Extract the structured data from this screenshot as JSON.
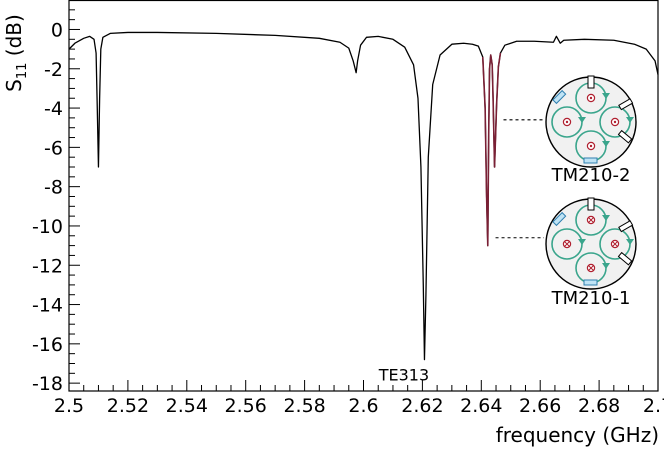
{
  "chart_data": {
    "type": "line",
    "xlabel": "frequency (GHz)",
    "ylabel": "S11 (dB)",
    "ylabel_main": "S",
    "ylabel_sub": "11",
    "ylabel_unit": " (dB)",
    "xlim": [
      2.5,
      2.7
    ],
    "ylim": [
      -18.4,
      1.5
    ],
    "grid": false,
    "xticks": [
      2.5,
      2.52,
      2.54,
      2.56,
      2.58,
      2.6,
      2.62,
      2.64,
      2.66,
      2.68,
      2.7
    ],
    "xtick_labels": [
      "2.5",
      "2.52",
      "2.54",
      "2.56",
      "2.58",
      "2.6",
      "2.62",
      "2.64",
      "2.66",
      "2.68",
      "2.7"
    ],
    "yticks": [
      0,
      -2,
      -4,
      -6,
      -8,
      -10,
      -12,
      -14,
      -16,
      -18
    ],
    "ytick_labels": [
      "0",
      "-2",
      "-4",
      "-6",
      "-8",
      "-10",
      "-12",
      "-14",
      "-16",
      "-18"
    ],
    "series": [
      {
        "color": "#000000",
        "x": [
          2.5,
          2.502,
          2.505,
          2.507,
          2.5085,
          2.5092,
          2.5096,
          2.51,
          2.5104,
          2.5108,
          2.5115,
          2.514,
          2.52,
          2.53,
          2.55,
          2.57,
          2.585,
          2.592,
          2.595,
          2.5965,
          2.5975,
          2.598,
          2.599,
          2.601,
          2.605,
          2.61,
          2.614,
          2.617,
          2.6185,
          2.6195,
          2.6203,
          2.6207,
          2.6212,
          2.622,
          2.6235,
          2.626,
          2.63,
          2.634,
          2.637,
          2.639,
          2.6405,
          2.6413,
          2.6418,
          2.6422,
          2.6425,
          2.6428,
          2.6432,
          2.6437,
          2.644,
          2.6445,
          2.6452,
          2.6458,
          2.6465,
          2.648,
          2.652,
          2.658,
          2.6645,
          2.6655,
          2.6668,
          2.668,
          2.675,
          2.685,
          2.692,
          2.696,
          2.699,
          2.7
        ],
        "y": [
          -1.0,
          -0.7,
          -0.45,
          -0.35,
          -0.5,
          -1.2,
          -4.0,
          -7.0,
          -3.5,
          -1.0,
          -0.4,
          -0.2,
          -0.15,
          -0.15,
          -0.2,
          -0.3,
          -0.45,
          -0.65,
          -0.95,
          -1.6,
          -2.2,
          -1.6,
          -0.8,
          -0.4,
          -0.35,
          -0.5,
          -0.9,
          -1.8,
          -3.5,
          -7.0,
          -13.0,
          -16.8,
          -13.5,
          -6.5,
          -2.8,
          -1.3,
          -0.75,
          -0.7,
          -0.75,
          -0.85,
          -1.4,
          -4.0,
          -8.5,
          -11.0,
          -5.5,
          -2.0,
          -1.3,
          -1.8,
          -3.5,
          -7.0,
          -3.8,
          -1.9,
          -1.2,
          -0.8,
          -0.6,
          -0.6,
          -0.65,
          -0.35,
          -0.7,
          -0.55,
          -0.5,
          -0.55,
          -0.75,
          -1.0,
          -1.6,
          -2.3
        ]
      }
    ],
    "highlight_range": [
      2.6405,
      2.6465
    ],
    "highlight_color": "#7a2035",
    "annotations": [
      {
        "text": "TE313",
        "x": 2.6195,
        "y": -17.05
      }
    ],
    "insets": [
      {
        "label": "TM210-2",
        "target_x": 2.6455,
        "target_y": -4.6
      },
      {
        "label": "TM210-1",
        "target_x": 2.6428,
        "target_y": -10.6
      }
    ]
  }
}
